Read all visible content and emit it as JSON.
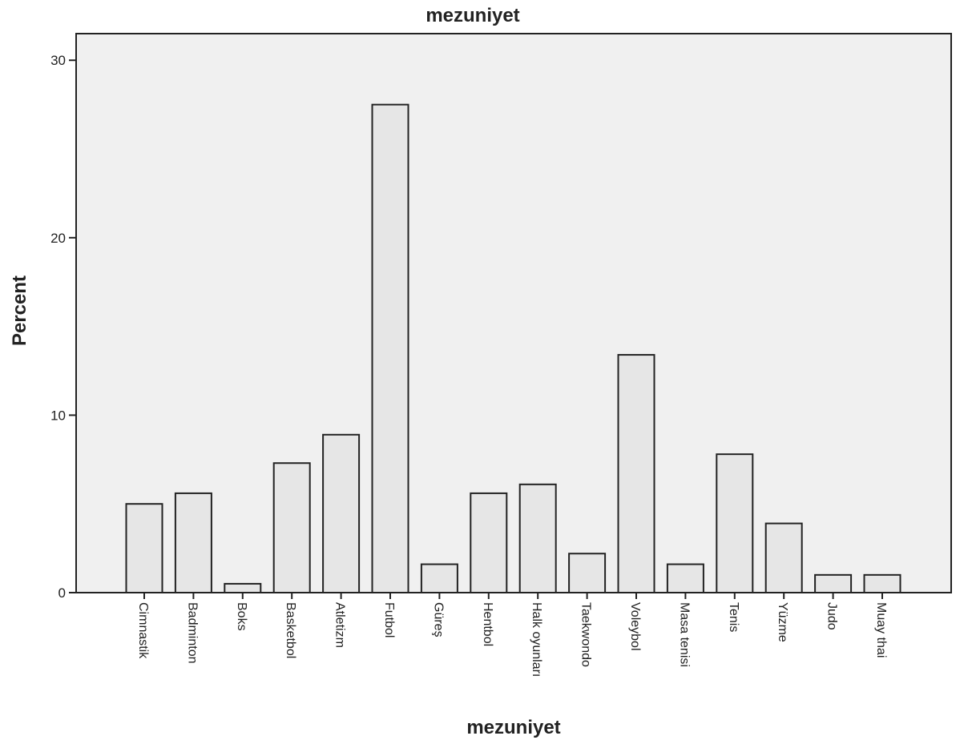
{
  "chart_data": {
    "type": "bar",
    "title": "mezuniyet",
    "xlabel": "mezuniyet",
    "ylabel": "Percent",
    "ylim": [
      0,
      31.5
    ],
    "yticks": [
      0,
      10,
      20,
      30
    ],
    "grid": false,
    "legend": "none",
    "categories": [
      "Cimnastik",
      "Badminton",
      "Boks",
      "Basketbol",
      "Atletizm",
      "Futbol",
      "Güreş",
      "Hentbol",
      "Halk oyunları",
      "Taekwondo",
      "Voleybol",
      "Masa tenisi",
      "Tenis",
      "Yüzme",
      "Judo",
      "Muay thai"
    ],
    "values": [
      5.0,
      5.6,
      0.5,
      7.3,
      8.9,
      27.5,
      1.6,
      5.6,
      6.1,
      2.2,
      13.4,
      1.6,
      7.8,
      3.9,
      1.0,
      1.0
    ],
    "colors": {
      "bar_fill": "#e6e6e6",
      "bar_stroke": "#222222",
      "plot_bg": "#f0f0f0"
    }
  }
}
